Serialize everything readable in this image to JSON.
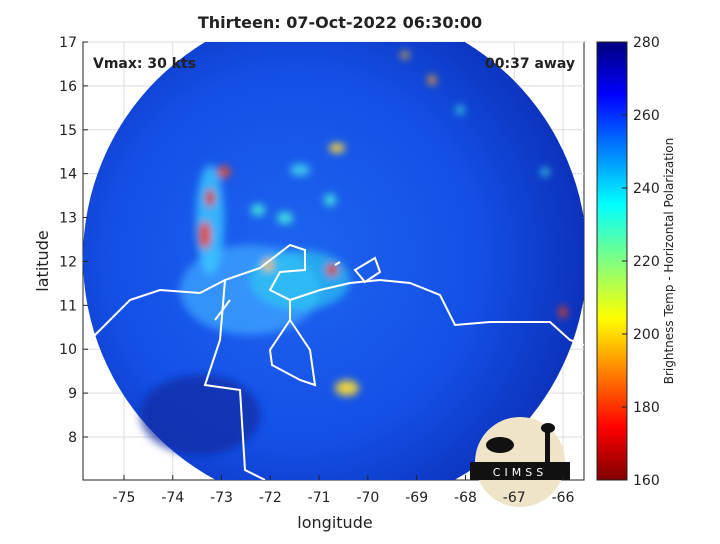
{
  "title": "Thirteen: 07-Oct-2022 06:30:00",
  "annotations": {
    "vmax": "Vmax: 30 kts",
    "distance": "00:37 away"
  },
  "axes": {
    "xlabel": "longitude",
    "ylabel": "latitude",
    "xlim": [
      -75.84,
      -65.57
    ],
    "ylim": [
      7.02,
      17
    ],
    "xticks": [
      -75,
      -74,
      -73,
      -72,
      -71,
      -70,
      -69,
      -68,
      -67,
      -66
    ],
    "yticks": [
      8,
      9,
      10,
      11,
      12,
      13,
      14,
      15,
      16,
      17
    ],
    "grid": true
  },
  "colorbar": {
    "label": "Brightness Temp - Horizontal Polarization",
    "lim": [
      160,
      280
    ],
    "ticks": [
      160,
      180,
      200,
      220,
      240,
      260,
      280
    ]
  },
  "logo": "CIMSS"
}
